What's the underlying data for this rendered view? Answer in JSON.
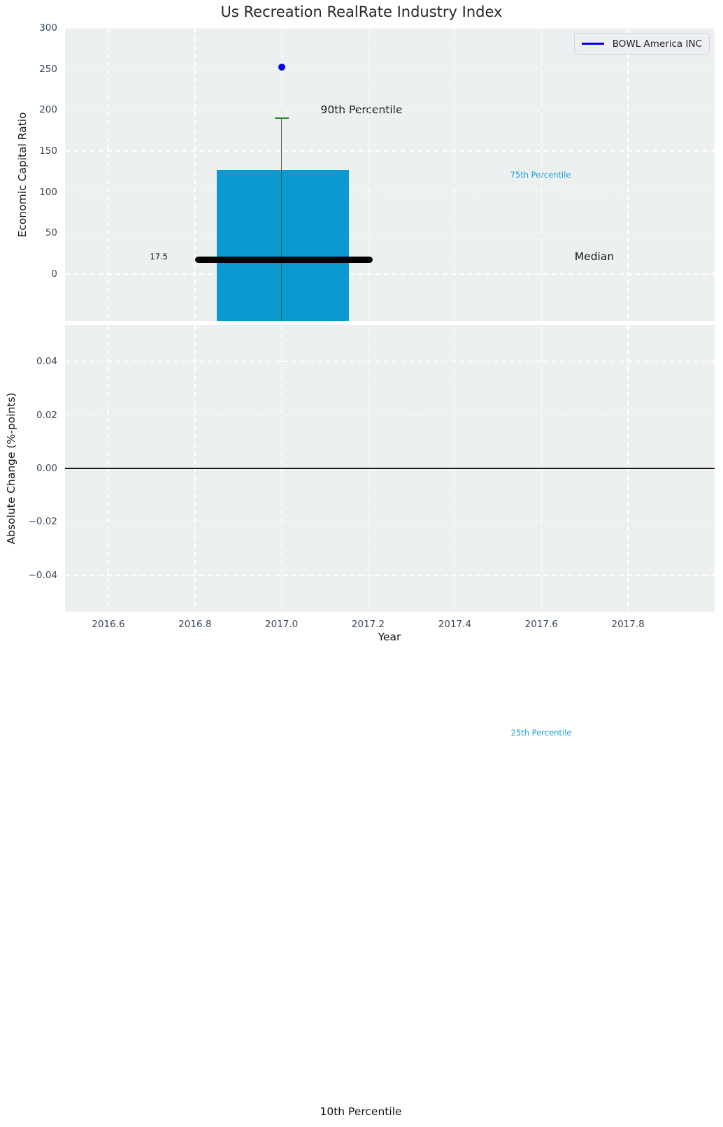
{
  "title": "Us Recreation RealRate Industry Index",
  "legend": {
    "label": "BOWL America INC"
  },
  "annotations": {
    "median_value_label": "17.5",
    "p90": "90th Percentile",
    "p75": "75th Percentile",
    "median": "Median",
    "p25": "25th Percentile",
    "p10": "10th Percentile"
  },
  "colors": {
    "plot_bg": "#ecf0f1",
    "grid": "#ffffff",
    "box_fill": "#0b9ad0",
    "median_line": "#000000",
    "whisker": "#4a4a4a",
    "cap_90th_green": "#228b22",
    "data_point_blue": "#0000e6",
    "legend_line_blue": "#0000e6",
    "cyan_annotation": "#1a9cd8",
    "tick_text": "#3a4a5e",
    "zero_line": "#1a1a1a"
  },
  "chart_data": [
    {
      "type": "box",
      "title": "Us Recreation RealRate Industry Index",
      "ylabel": "Economic Capital Ratio",
      "xlabel": "Year",
      "xlim": [
        2016.5,
        2018.0
      ],
      "ylim": [
        -57,
        300
      ],
      "yticks": [
        0,
        50,
        100,
        150,
        200,
        250,
        300
      ],
      "ytick_labels": [
        "0",
        "50",
        "100",
        "150",
        "200",
        "250",
        "300"
      ],
      "xticks": [
        2016.6,
        2016.8,
        2017.0,
        2017.2,
        2017.4,
        2017.6,
        2017.8
      ],
      "grid": "white dashed, on",
      "legend_position": "upper right",
      "box": {
        "x_center": 2017.0,
        "x_left": 2016.85,
        "x_right": 2017.155,
        "median": 17.5,
        "median_x_left": 2016.8,
        "median_x_right": 2017.21,
        "percentile_75_box_top": 127,
        "percentile_90_whisker": 190,
        "percentile_25": "below visible axis range",
        "percentile_10": "below visible axis range"
      },
      "series": [
        {
          "name": "BOWL America INC",
          "type": "scatter",
          "x": [
            2017.0
          ],
          "y": [
            252
          ]
        }
      ]
    },
    {
      "type": "line",
      "ylabel": "Absolute Change (%-points)",
      "xlabel": "Year",
      "xlim": [
        2016.5,
        2018.0
      ],
      "ylim": [
        -0.0536,
        0.0536
      ],
      "yticks": [
        0.04,
        0.02,
        0.0,
        -0.02,
        -0.04
      ],
      "ytick_labels": [
        "0.04",
        "0.02",
        "0.00",
        "−0.02",
        "−0.04"
      ],
      "xticks": [
        2016.6,
        2016.8,
        2017.0,
        2017.2,
        2017.4,
        2017.6,
        2017.8
      ],
      "grid": "white dashed, on",
      "zero_line_y": 0.0,
      "series": []
    }
  ]
}
